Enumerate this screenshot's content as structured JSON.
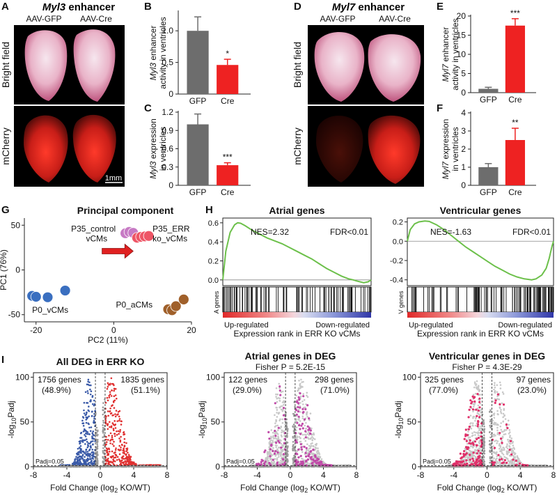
{
  "panels": {
    "A": {
      "letter": "A",
      "title_italic": "Myl3",
      "title_rest": " enhancer",
      "col1": "AAV-GFP",
      "col2": "AAV-Cre",
      "row1": "Bright field",
      "row2": "mCherry",
      "scale": "1mm"
    },
    "D": {
      "letter": "D",
      "title_italic": "Myl7",
      "title_rest": " enhancer",
      "col1": "AAV-GFP",
      "col2": "AAV-Cre",
      "row1": "Bright field",
      "row2": "mCherry"
    }
  },
  "colors": {
    "gfp": "#6d6d6d",
    "cre": "#ee2222",
    "up": "#e03030",
    "down": "#3a5aa8",
    "atrial": "#c04aa8",
    "ventricular": "#e0306a",
    "gsea": "#6cc04a",
    "pc_p35c": "#c77ac4",
    "pc_p35e": "#ee5566",
    "pc_p0v": "#3a6fc0",
    "pc_p0a": "#a0602a"
  },
  "chart_data": [
    {
      "id": "B",
      "letter": "B",
      "type": "bar",
      "categories": [
        "GFP",
        "Cre"
      ],
      "values": [
        1.0,
        0.46
      ],
      "errors": [
        0.22,
        0.09
      ],
      "ylim": [
        0,
        1.3
      ],
      "yticks": [
        0,
        0.5,
        1.0
      ],
      "ytick_labels": [
        "0",
        "0.5",
        "1.0"
      ],
      "ylabel_italic": "Myl3",
      "ylabel_rest": " enhancer",
      "ylabel_line2": "activity in ventricles",
      "sig": "*"
    },
    {
      "id": "C",
      "letter": "C",
      "type": "bar",
      "categories": [
        "GFP",
        "Cre"
      ],
      "values": [
        1.0,
        0.33
      ],
      "errors": [
        0.17,
        0.04
      ],
      "ylim": [
        0,
        1.2
      ],
      "yticks": [
        0,
        0.3,
        0.6,
        0.9,
        1.2
      ],
      "ytick_labels": [
        "0",
        "0.3",
        "0.6",
        "0.9",
        "1.2"
      ],
      "ylabel_italic": "Myl3",
      "ylabel_rest": " expression",
      "ylabel_line2": "in ventricles",
      "sig": "***"
    },
    {
      "id": "E",
      "letter": "E",
      "type": "bar",
      "categories": [
        "GFP",
        "Cre"
      ],
      "values": [
        1.0,
        17.5
      ],
      "errors": [
        0.4,
        1.8
      ],
      "ylim": [
        0,
        20
      ],
      "yticks": [
        0,
        5,
        10,
        15,
        20
      ],
      "ytick_labels": [
        "0",
        "5",
        "10",
        "15",
        "20"
      ],
      "ylabel_italic": "Myl7",
      "ylabel_rest": " enhancer",
      "ylabel_line2": "activity in ventricles",
      "sig": "***"
    },
    {
      "id": "F",
      "letter": "F",
      "type": "bar",
      "categories": [
        "GFP",
        "Cre"
      ],
      "values": [
        1.0,
        2.5
      ],
      "errors": [
        0.2,
        0.65
      ],
      "ylim": [
        0,
        4
      ],
      "yticks": [
        0,
        1,
        2,
        3,
        4
      ],
      "ytick_labels": [
        "0",
        "1",
        "2",
        "3",
        "4"
      ],
      "ylabel_italic": "Myl7",
      "ylabel_rest": " expression",
      "ylabel_line2": "in ventricles",
      "sig": "**"
    },
    {
      "id": "G",
      "letter": "G",
      "type": "scatter",
      "title": "Principal component",
      "xlabel": "PC2 (11%)",
      "ylabel": "PC1 (76%)",
      "xlim": [
        -23,
        20
      ],
      "ylim": [
        -58,
        58
      ],
      "xticks": [
        -20,
        0,
        20
      ],
      "yticks": [
        -50,
        0,
        50
      ],
      "groups": [
        {
          "name": "P35_control vCMs",
          "line1": "P35_control",
          "line2": "vCMs",
          "color": "pc_p35c",
          "points": [
            [
              3,
              41
            ],
            [
              4,
              42.5
            ],
            [
              5,
              41.5
            ]
          ]
        },
        {
          "name": "P35_ERR ko_vCMs",
          "line1": "P35_ERR",
          "line2": "ko_vCMs",
          "color": "pc_p35e",
          "points": [
            [
              6,
              36
            ],
            [
              7,
              37
            ],
            [
              8,
              37.5
            ],
            [
              9,
              38
            ]
          ]
        },
        {
          "name": "P0_vCMs",
          "line1": "P0_vCMs",
          "line2": "",
          "color": "pc_p0v",
          "points": [
            [
              -21,
              -29
            ],
            [
              -20,
              -30
            ],
            [
              -17,
              -30.5
            ],
            [
              -12.5,
              -23
            ]
          ]
        },
        {
          "name": "P0_aCMs",
          "line1": "P0_aCMs",
          "line2": "",
          "color": "pc_p0a",
          "points": [
            [
              14,
              -44
            ],
            [
              15,
              -45
            ],
            [
              16,
              -40.5
            ],
            [
              18,
              -33
            ]
          ]
        }
      ],
      "arrow_from": [
        -3,
        21
      ],
      "arrow_to": [
        5,
        21
      ]
    },
    {
      "id": "H1",
      "letter": "H",
      "type": "line",
      "title": "Atrial genes",
      "stat_nes": "NES=2.32",
      "stat_fdr": "FDR<0.01",
      "ylim": [
        -0.06,
        0.65
      ],
      "yticks": [
        0.0,
        0.2,
        0.4,
        0.6
      ],
      "ytick_labels": [
        "0.0",
        "0.2",
        "0.4",
        "0.6"
      ],
      "x": [
        0,
        0.02,
        0.05,
        0.08,
        0.1,
        0.12,
        0.15,
        0.2,
        0.25,
        0.3,
        0.35,
        0.4,
        0.45,
        0.5,
        0.55,
        0.6,
        0.65,
        0.7,
        0.75,
        0.8,
        0.85,
        0.88,
        0.9,
        0.95,
        0.98,
        1.0
      ],
      "y": [
        0,
        0.3,
        0.5,
        0.58,
        0.6,
        0.595,
        0.57,
        0.52,
        0.48,
        0.44,
        0.41,
        0.38,
        0.34,
        0.3,
        0.26,
        0.22,
        0.17,
        0.12,
        0.08,
        0.04,
        0.01,
        0.0,
        -0.01,
        -0.03,
        -0.02,
        0
      ],
      "genes_label": "A genes",
      "up_label": "Up-regulated",
      "down_label": "Down-regulated",
      "xlabel": "Expression rank in ERR KO vCMs"
    },
    {
      "id": "H2",
      "type": "line",
      "title": "Ventricular genes",
      "stat_nes": "NES=-1.63",
      "stat_fdr": "FDR<0.01",
      "ylim": [
        -0.46,
        0.24
      ],
      "yticks": [
        -0.4,
        -0.2,
        0.0,
        0.2
      ],
      "ytick_labels": [
        "-0.4",
        "-0.2",
        "0.0",
        "0.2"
      ],
      "x": [
        0,
        0.02,
        0.05,
        0.08,
        0.12,
        0.15,
        0.2,
        0.25,
        0.3,
        0.35,
        0.4,
        0.45,
        0.5,
        0.55,
        0.6,
        0.65,
        0.7,
        0.75,
        0.8,
        0.85,
        0.88,
        0.92,
        0.95,
        0.97,
        0.99,
        1.0
      ],
      "y": [
        0,
        0.12,
        0.18,
        0.2,
        0.21,
        0.205,
        0.17,
        0.12,
        0.06,
        0.0,
        -0.06,
        -0.11,
        -0.16,
        -0.21,
        -0.26,
        -0.3,
        -0.34,
        -0.37,
        -0.39,
        -0.4,
        -0.39,
        -0.35,
        -0.28,
        -0.18,
        -0.05,
        0
      ],
      "genes_label": "V genes",
      "up_label": "Up-regulated",
      "down_label": "Down-regulated",
      "xlabel": "Expression rank in ERR KO vCMs"
    },
    {
      "id": "I1",
      "letter": "I",
      "type": "scatter",
      "title": "All DEG in ERR KO",
      "subtitle": "",
      "left_count": "1756 genes",
      "left_pct": "(48.9%)",
      "right_count": "1835 genes",
      "right_pct": "(51.1%)",
      "xlim": [
        -8,
        8
      ],
      "ylim": [
        0,
        105
      ],
      "xticks": [
        -8,
        -4,
        0,
        4,
        8
      ],
      "yticks": [
        0,
        50,
        100
      ],
      "xlabel": "Fold Change (log2 KO/WT)",
      "ylabel": "-log10Padj",
      "padj_label": "Padj=0.05",
      "highlight": "all"
    },
    {
      "id": "I2",
      "type": "scatter",
      "title": "Atrial genes in DEG",
      "subtitle": "Fisher P = 5.2E-15",
      "left_count": "122 genes",
      "left_pct": "(29.0%)",
      "right_count": "298 genes",
      "right_pct": "(71.0%)",
      "xlim": [
        -8,
        8
      ],
      "ylim": [
        0,
        105
      ],
      "xticks": [
        -8,
        -4,
        0,
        4,
        8
      ],
      "yticks": [
        0,
        50,
        100
      ],
      "xlabel": "Fold Change (log2 KO/WT)",
      "ylabel": "-log10Padj",
      "padj_label": "Padj=0.05",
      "highlight": "atrial"
    },
    {
      "id": "I3",
      "type": "scatter",
      "title": "Ventricular genes in DEG",
      "subtitle": "Fisher P = 4.3E-29",
      "left_count": "325 genes",
      "left_pct": "(77.0%)",
      "right_count": "97 genes",
      "right_pct": "(23.0%)",
      "xlim": [
        -8,
        8
      ],
      "ylim": [
        0,
        105
      ],
      "xticks": [
        -8,
        -4,
        0,
        4,
        8
      ],
      "yticks": [
        0,
        50,
        100
      ],
      "xlabel": "Fold Change (log2 KO/WT)",
      "ylabel": "-log10Padj",
      "padj_label": "Padj=0.05",
      "highlight": "ventricular"
    }
  ]
}
